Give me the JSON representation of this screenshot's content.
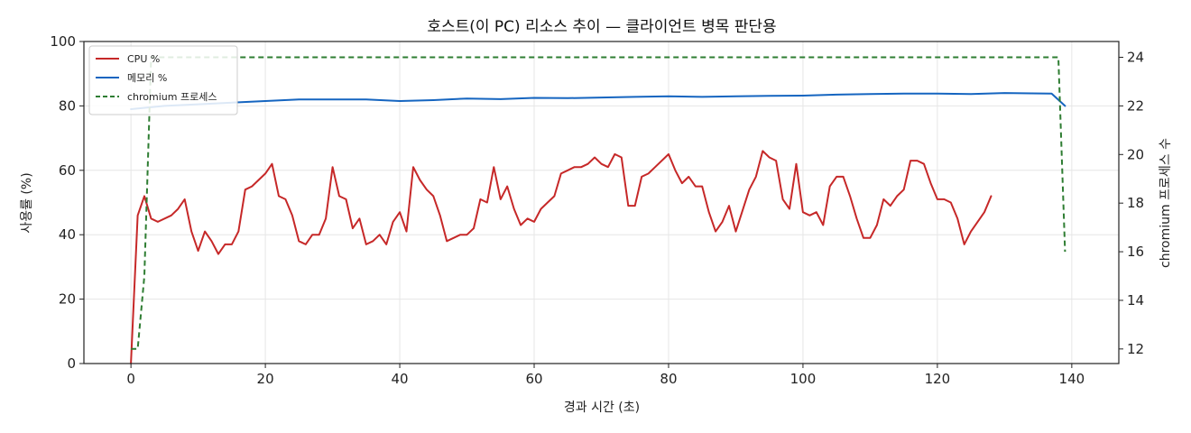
{
  "chart_data": {
    "type": "line",
    "title": "호스트(이 PC) 리소스 추이 — 클라이언트 병목 판단용",
    "xlabel": "경과 시간 (초)",
    "ylabel": "사용률 (%)",
    "y2label": "chromium 프로세스 수",
    "xlim": [
      -7,
      147
    ],
    "ylim": [
      0,
      100
    ],
    "y2lim": [
      11.4,
      24.65
    ],
    "xticks": [
      0,
      20,
      40,
      60,
      80,
      100,
      120,
      140
    ],
    "yticks": [
      0,
      20,
      40,
      60,
      80,
      100
    ],
    "y2ticks": [
      12,
      14,
      16,
      18,
      20,
      22,
      24
    ],
    "grid": true,
    "legend": "top-left",
    "series": [
      {
        "name": "CPU %",
        "axis": "left",
        "color": "#c62828",
        "style": "solid",
        "points": [
          [
            0,
            0
          ],
          [
            1,
            46
          ],
          [
            2,
            52
          ],
          [
            3,
            45
          ],
          [
            4,
            44
          ],
          [
            6,
            46
          ],
          [
            7,
            48
          ],
          [
            8,
            51
          ],
          [
            9,
            41
          ],
          [
            10,
            35
          ],
          [
            11,
            41
          ],
          [
            12,
            38
          ],
          [
            13,
            34
          ],
          [
            14,
            37
          ],
          [
            15,
            37
          ],
          [
            16,
            41
          ],
          [
            17,
            54
          ],
          [
            18,
            55
          ],
          [
            20,
            59
          ],
          [
            21,
            62
          ],
          [
            22,
            52
          ],
          [
            23,
            51
          ],
          [
            24,
            46
          ],
          [
            25,
            38
          ],
          [
            26,
            37
          ],
          [
            27,
            40
          ],
          [
            28,
            40
          ],
          [
            29,
            45
          ],
          [
            30,
            61
          ],
          [
            31,
            52
          ],
          [
            32,
            51
          ],
          [
            33,
            42
          ],
          [
            34,
            45
          ],
          [
            35,
            37
          ],
          [
            36,
            38
          ],
          [
            37,
            40
          ],
          [
            38,
            37
          ],
          [
            39,
            44
          ],
          [
            40,
            47
          ],
          [
            41,
            41
          ],
          [
            42,
            61
          ],
          [
            43,
            57
          ],
          [
            44,
            54
          ],
          [
            45,
            52
          ],
          [
            46,
            46
          ],
          [
            47,
            38
          ],
          [
            48,
            39
          ],
          [
            49,
            40
          ],
          [
            50,
            40
          ],
          [
            51,
            42
          ],
          [
            52,
            51
          ],
          [
            53,
            50
          ],
          [
            54,
            61
          ],
          [
            55,
            51
          ],
          [
            56,
            55
          ],
          [
            57,
            48
          ],
          [
            58,
            43
          ],
          [
            59,
            45
          ],
          [
            60,
            44
          ],
          [
            61,
            48
          ],
          [
            62,
            50
          ],
          [
            63,
            52
          ],
          [
            64,
            59
          ],
          [
            65,
            60
          ],
          [
            66,
            61
          ],
          [
            67,
            61
          ],
          [
            68,
            62
          ],
          [
            69,
            64
          ],
          [
            70,
            62
          ],
          [
            71,
            61
          ],
          [
            72,
            65
          ],
          [
            73,
            64
          ],
          [
            74,
            49
          ],
          [
            75,
            49
          ],
          [
            76,
            58
          ],
          [
            77,
            59
          ],
          [
            78,
            61
          ],
          [
            80,
            65
          ],
          [
            81,
            60
          ],
          [
            82,
            56
          ],
          [
            83,
            58
          ],
          [
            84,
            55
          ],
          [
            85,
            55
          ],
          [
            86,
            47
          ],
          [
            87,
            41
          ],
          [
            88,
            44
          ],
          [
            89,
            49
          ],
          [
            90,
            41
          ],
          [
            92,
            54
          ],
          [
            93,
            58
          ],
          [
            94,
            66
          ],
          [
            95,
            64
          ],
          [
            96,
            63
          ],
          [
            97,
            51
          ],
          [
            98,
            48
          ],
          [
            99,
            62
          ],
          [
            100,
            47
          ],
          [
            101,
            46
          ],
          [
            102,
            47
          ],
          [
            103,
            43
          ],
          [
            104,
            55
          ],
          [
            105,
            58
          ],
          [
            106,
            58
          ],
          [
            107,
            52
          ],
          [
            108,
            45
          ],
          [
            109,
            39
          ],
          [
            110,
            39
          ],
          [
            111,
            43
          ],
          [
            112,
            51
          ],
          [
            113,
            49
          ],
          [
            114,
            52
          ],
          [
            115,
            54
          ],
          [
            116,
            63
          ],
          [
            117,
            63
          ],
          [
            118,
            62
          ],
          [
            119,
            56
          ],
          [
            120,
            51
          ],
          [
            121,
            51
          ],
          [
            122,
            50
          ],
          [
            123,
            45
          ],
          [
            124,
            37
          ],
          [
            125,
            41
          ],
          [
            127,
            47
          ],
          [
            128,
            52
          ]
        ]
      },
      {
        "name": "메모리 %",
        "axis": "left",
        "color": "#1565c0",
        "style": "solid",
        "points": [
          [
            0,
            79
          ],
          [
            5,
            80
          ],
          [
            10,
            80.5
          ],
          [
            15,
            81
          ],
          [
            20,
            81.5
          ],
          [
            25,
            82
          ],
          [
            30,
            82
          ],
          [
            35,
            82
          ],
          [
            40,
            81.5
          ],
          [
            45,
            81.8
          ],
          [
            50,
            82.3
          ],
          [
            55,
            82.1
          ],
          [
            60,
            82.5
          ],
          [
            65,
            82.4
          ],
          [
            70,
            82.6
          ],
          [
            75,
            82.8
          ],
          [
            80,
            83
          ],
          [
            85,
            82.8
          ],
          [
            90,
            83
          ],
          [
            95,
            83.1
          ],
          [
            100,
            83.2
          ],
          [
            105,
            83.5
          ],
          [
            110,
            83.7
          ],
          [
            115,
            83.8
          ],
          [
            120,
            83.8
          ],
          [
            125,
            83.7
          ],
          [
            130,
            84
          ],
          [
            134,
            83.9
          ],
          [
            137,
            83.8
          ],
          [
            139,
            80
          ]
        ]
      },
      {
        "name": "chromium 프로세스",
        "axis": "right",
        "color": "#2e7d32",
        "style": "dashed",
        "points": [
          [
            0,
            12
          ],
          [
            1,
            12
          ],
          [
            2,
            15
          ],
          [
            3,
            24
          ],
          [
            138,
            24
          ],
          [
            139,
            16
          ]
        ]
      }
    ]
  }
}
